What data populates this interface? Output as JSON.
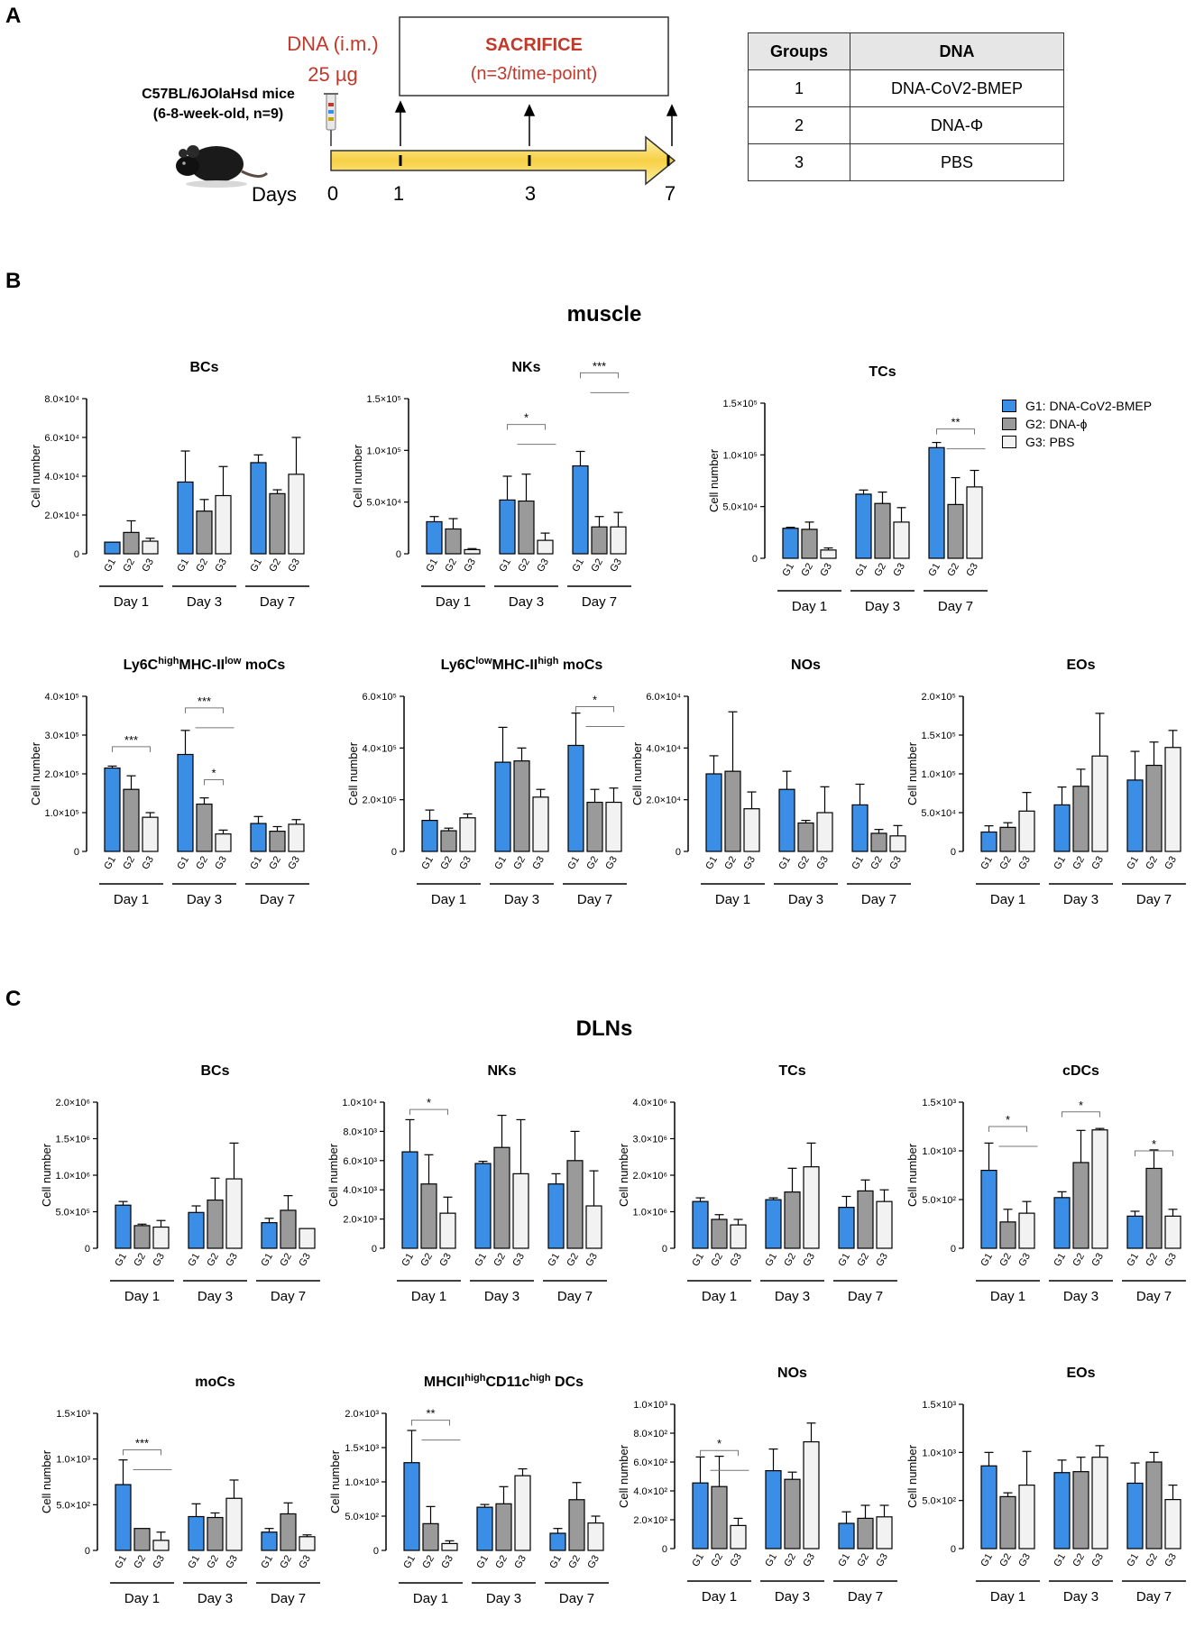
{
  "panels": {
    "a": "A",
    "b": "B",
    "c": "C"
  },
  "scheme": {
    "mouse_strain": "C57BL/6JOlaHsd mice",
    "mouse_info": "(6-8-week-old, n=9)",
    "dose_route": "DNA (i.m.)",
    "dose_amount": "25 µg",
    "sacrifice_title": "SACRIFICE",
    "sacrifice_detail": "(n=3/time-point)",
    "days_label": "Days",
    "days": [
      "0",
      "1",
      "3",
      "7"
    ]
  },
  "groups_table": {
    "headers": [
      "Groups",
      "DNA"
    ],
    "rows": [
      [
        "1",
        "DNA-CoV2-BMEP"
      ],
      [
        "2",
        "DNA-Φ"
      ],
      [
        "3",
        "PBS"
      ]
    ]
  },
  "section_titles": {
    "muscle": "muscle",
    "dlns": "DLNs"
  },
  "legend": [
    {
      "label": "G1: DNA-CoV2-BMEP",
      "color": "#3a8ee6"
    },
    {
      "label": "G2: DNA-ɸ",
      "color": "#9a9a9a"
    },
    {
      "label": "G3: PBS",
      "color": "#f2f2f2"
    }
  ],
  "colors": {
    "g1": "#3a8ee6",
    "g2": "#9a9a9a",
    "g3": "#f2f2f2"
  },
  "chart_data": [
    {
      "type": "bar",
      "section": "muscle",
      "title": "BCs",
      "ylabel": "Cell number",
      "ylim": [
        0,
        80000
      ],
      "yticks": [
        [
          0,
          "0"
        ],
        [
          20000,
          "2.0×10⁴"
        ],
        [
          40000,
          "4.0×10⁴"
        ],
        [
          60000,
          "6.0×10⁴"
        ],
        [
          80000,
          "8.0×10⁴"
        ]
      ],
      "groups": [
        "G1",
        "G2",
        "G3"
      ],
      "days": [
        "Day 1",
        "Day 3",
        "Day 7"
      ],
      "values": [
        [
          6000,
          11000,
          6500
        ],
        [
          37000,
          22000,
          30000
        ],
        [
          47000,
          31000,
          41000
        ]
      ],
      "errors": [
        [
          0,
          6000,
          1500
        ],
        [
          16000,
          6000,
          15000
        ],
        [
          4000,
          2000,
          19000
        ]
      ],
      "sig": []
    },
    {
      "type": "bar",
      "section": "muscle",
      "title": "NKs",
      "ylabel": "Cell number",
      "ylim": [
        0,
        150000
      ],
      "yticks": [
        [
          0,
          "0"
        ],
        [
          50000,
          "5.0×10⁴"
        ],
        [
          100000,
          "1.0×10⁵"
        ],
        [
          150000,
          "1.5×10⁵"
        ]
      ],
      "groups": [
        "G1",
        "G2",
        "G3"
      ],
      "days": [
        "Day 1",
        "Day 3",
        "Day 7"
      ],
      "values": [
        [
          31000,
          24000,
          4000
        ],
        [
          52000,
          51000,
          13000
        ],
        [
          85000,
          26000,
          26000
        ]
      ],
      "errors": [
        [
          5000,
          10000,
          1000
        ],
        [
          23000,
          26000,
          7000
        ],
        [
          14000,
          10000,
          14000
        ]
      ],
      "sig": [
        {
          "day": 1,
          "a": 0,
          "b": 2,
          "y": 125000,
          "label": "*",
          "combo": true
        },
        {
          "day": 2,
          "a": 0,
          "b": 2,
          "y": 175000,
          "label": "***",
          "combo": true
        }
      ]
    },
    {
      "type": "bar",
      "section": "muscle",
      "title": "TCs",
      "ylabel": "Cell number",
      "ylim": [
        0,
        150000
      ],
      "yticks": [
        [
          0,
          "0"
        ],
        [
          50000,
          "5.0×10⁴"
        ],
        [
          100000,
          "1.0×10⁵"
        ],
        [
          150000,
          "1.5×10⁵"
        ]
      ],
      "groups": [
        "G1",
        "G2",
        "G3"
      ],
      "days": [
        "Day 1",
        "Day 3",
        "Day 7"
      ],
      "values": [
        [
          29000,
          28000,
          8000
        ],
        [
          62000,
          53000,
          35000
        ],
        [
          107000,
          52000,
          69000
        ]
      ],
      "errors": [
        [
          1000,
          7000,
          2000
        ],
        [
          4000,
          11000,
          14000
        ],
        [
          5000,
          26000,
          16000
        ]
      ],
      "sig": [
        {
          "day": 2,
          "a": 0,
          "b": 2,
          "y": 125000,
          "label": "**",
          "combo": true
        }
      ]
    },
    {
      "type": "bar",
      "section": "muscle",
      "title": "Ly6C",
      "title_sup1": "high",
      "title_mid": "MHC-II",
      "title_sup2": "low",
      "title_end": " moCs",
      "ylabel": "Cell number",
      "ylim": [
        0,
        400000
      ],
      "yticks": [
        [
          0,
          "0"
        ],
        [
          100000,
          "1.0×10⁵"
        ],
        [
          200000,
          "2.0×10⁵"
        ],
        [
          300000,
          "3.0×10⁵"
        ],
        [
          400000,
          "4.0×10⁵"
        ]
      ],
      "groups": [
        "G1",
        "G2",
        "G3"
      ],
      "days": [
        "Day 1",
        "Day 3",
        "Day 7"
      ],
      "values": [
        [
          215000,
          160000,
          88000
        ],
        [
          250000,
          122000,
          45000
        ],
        [
          72000,
          52000,
          70000
        ]
      ],
      "errors": [
        [
          5000,
          35000,
          12000
        ],
        [
          62000,
          16000,
          10000
        ],
        [
          18000,
          12000,
          12000
        ]
      ],
      "sig": [
        {
          "day": 0,
          "a": 0,
          "b": 2,
          "y": 270000,
          "label": "***"
        },
        {
          "day": 1,
          "a": 0,
          "b": 2,
          "y": 370000,
          "label": "***",
          "combo": true
        },
        {
          "day": 1,
          "a": 1,
          "b": 2,
          "y": 185000,
          "label": "*"
        }
      ]
    },
    {
      "type": "bar",
      "section": "muscle",
      "title": "Ly6C",
      "title_sup1": "low",
      "title_mid": "MHC-II",
      "title_sup2": "high",
      "title_end": " moCs",
      "ylabel": "Cell number",
      "ylim": [
        0,
        600000
      ],
      "yticks": [
        [
          0,
          "0"
        ],
        [
          200000,
          "2.0×10⁵"
        ],
        [
          400000,
          "4.0×10⁵"
        ],
        [
          600000,
          "6.0×10⁵"
        ]
      ],
      "groups": [
        "G1",
        "G2",
        "G3"
      ],
      "days": [
        "Day 1",
        "Day 3",
        "Day 7"
      ],
      "values": [
        [
          120000,
          80000,
          130000
        ],
        [
          345000,
          350000,
          210000
        ],
        [
          410000,
          190000,
          190000
        ]
      ],
      "errors": [
        [
          40000,
          10000,
          15000
        ],
        [
          135000,
          50000,
          30000
        ],
        [
          125000,
          50000,
          55000
        ]
      ],
      "sig": [
        {
          "day": 2,
          "a": 0,
          "b": 2,
          "y": 560000,
          "label": "*",
          "combo": true
        }
      ]
    },
    {
      "type": "bar",
      "section": "muscle",
      "title": "NOs",
      "ylabel": "Cell number",
      "ylim": [
        0,
        60000
      ],
      "yticks": [
        [
          0,
          "0"
        ],
        [
          20000,
          "2.0×10⁴"
        ],
        [
          40000,
          "4.0×10⁴"
        ],
        [
          60000,
          "6.0×10⁴"
        ]
      ],
      "groups": [
        "G1",
        "G2",
        "G3"
      ],
      "days": [
        "Day 1",
        "Day 3",
        "Day 7"
      ],
      "values": [
        [
          30000,
          31000,
          16500
        ],
        [
          24000,
          11000,
          15000
        ],
        [
          18000,
          7000,
          6000
        ]
      ],
      "errors": [
        [
          7000,
          23000,
          6500
        ],
        [
          7000,
          1000,
          10000
        ],
        [
          8000,
          1500,
          4000
        ]
      ],
      "sig": []
    },
    {
      "type": "bar",
      "section": "muscle",
      "title": "EOs",
      "ylabel": "Cell number",
      "ylim": [
        0,
        200000
      ],
      "yticks": [
        [
          0,
          "0"
        ],
        [
          50000,
          "5.0×10⁴"
        ],
        [
          100000,
          "1.0×10⁵"
        ],
        [
          150000,
          "1.5×10⁵"
        ],
        [
          200000,
          "2.0×10⁵"
        ]
      ],
      "groups": [
        "G1",
        "G2",
        "G3"
      ],
      "days": [
        "Day 1",
        "Day 3",
        "Day 7"
      ],
      "values": [
        [
          25000,
          31000,
          52000
        ],
        [
          60000,
          84000,
          123000
        ],
        [
          92000,
          111000,
          134000
        ]
      ],
      "errors": [
        [
          8000,
          6000,
          24000
        ],
        [
          23000,
          22000,
          55000
        ],
        [
          37000,
          30000,
          22000
        ]
      ],
      "sig": []
    },
    {
      "type": "bar",
      "section": "DLNs",
      "title": "BCs",
      "ylabel": "Cell number",
      "ylim": [
        0,
        2000000
      ],
      "yticks": [
        [
          0,
          "0"
        ],
        [
          500000,
          "5.0×10⁵"
        ],
        [
          1000000,
          "1.0×10⁶"
        ],
        [
          1500000,
          "1.5×10⁶"
        ],
        [
          2000000,
          "2.0×10⁶"
        ]
      ],
      "groups": [
        "G1",
        "G2",
        "G3"
      ],
      "days": [
        "Day 1",
        "Day 3",
        "Day 7"
      ],
      "values": [
        [
          590000,
          310000,
          290000
        ],
        [
          490000,
          660000,
          950000
        ],
        [
          350000,
          520000,
          270000
        ]
      ],
      "errors": [
        [
          50000,
          20000,
          90000
        ],
        [
          90000,
          300000,
          490000
        ],
        [
          60000,
          200000,
          0
        ]
      ],
      "sig": []
    },
    {
      "type": "bar",
      "section": "DLNs",
      "title": "NKs",
      "ylabel": "Cell number",
      "ylim": [
        0,
        10000
      ],
      "yticks": [
        [
          0,
          "0"
        ],
        [
          2000,
          "2.0×10³"
        ],
        [
          4000,
          "4.0×10³"
        ],
        [
          6000,
          "6.0×10³"
        ],
        [
          8000,
          "8.0×10³"
        ],
        [
          10000,
          "1.0×10⁴"
        ]
      ],
      "groups": [
        "G1",
        "G2",
        "G3"
      ],
      "days": [
        "Day 1",
        "Day 3",
        "Day 7"
      ],
      "values": [
        [
          6600,
          4400,
          2400
        ],
        [
          5800,
          6900,
          5100
        ],
        [
          4400,
          6000,
          2900
        ]
      ],
      "errors": [
        [
          2200,
          2000,
          1100
        ],
        [
          150,
          2200,
          3700
        ],
        [
          700,
          2000,
          2400
        ]
      ],
      "sig": [
        {
          "day": 0,
          "a": 0,
          "b": 2,
          "y": 9500,
          "label": "*"
        }
      ]
    },
    {
      "type": "bar",
      "section": "DLNs",
      "title": "TCs",
      "ylabel": "Cell number",
      "ylim": [
        0,
        4000000
      ],
      "yticks": [
        [
          0,
          "0"
        ],
        [
          1000000,
          "1.0×10⁶"
        ],
        [
          2000000,
          "2.0×10⁶"
        ],
        [
          3000000,
          "3.0×10⁶"
        ],
        [
          4000000,
          "4.0×10⁶"
        ]
      ],
      "groups": [
        "G1",
        "G2",
        "G3"
      ],
      "days": [
        "Day 1",
        "Day 3",
        "Day 7"
      ],
      "values": [
        [
          1280000,
          790000,
          640000
        ],
        [
          1330000,
          1540000,
          2230000
        ],
        [
          1120000,
          1570000,
          1280000
        ]
      ],
      "errors": [
        [
          100000,
          130000,
          150000
        ],
        [
          50000,
          650000,
          650000
        ],
        [
          300000,
          300000,
          320000
        ]
      ],
      "sig": []
    },
    {
      "type": "bar",
      "section": "DLNs",
      "title": "cDCs",
      "ylabel": "Cell number",
      "ylim": [
        0,
        1500
      ],
      "yticks": [
        [
          0,
          "0"
        ],
        [
          500,
          "5.0×10²"
        ],
        [
          1000,
          "1.0×10³"
        ],
        [
          1500,
          "1.5×10³"
        ]
      ],
      "groups": [
        "G1",
        "G2",
        "G3"
      ],
      "days": [
        "Day 1",
        "Day 3",
        "Day 7"
      ],
      "values": [
        [
          800,
          270,
          360
        ],
        [
          520,
          880,
          1215
        ],
        [
          330,
          820,
          330
        ]
      ],
      "errors": [
        [
          280,
          130,
          120
        ],
        [
          60,
          330,
          15
        ],
        [
          50,
          190,
          70
        ]
      ],
      "sig": [
        {
          "day": 0,
          "a": 0,
          "b": 2,
          "y": 1250,
          "label": "*",
          "combo": true
        },
        {
          "day": 1,
          "a": 0,
          "b": 2,
          "y": 1400,
          "label": "*"
        },
        {
          "day": 2,
          "a": 0,
          "b": 2,
          "y": 1000,
          "label": "*"
        }
      ]
    },
    {
      "type": "bar",
      "section": "DLNs",
      "title": "moCs",
      "ylabel": "Cell number",
      "ylim": [
        0,
        1500
      ],
      "yticks": [
        [
          0,
          "0"
        ],
        [
          500,
          "5.0×10²"
        ],
        [
          1000,
          "1.0×10³"
        ],
        [
          1500,
          "1.5×10³"
        ]
      ],
      "groups": [
        "G1",
        "G2",
        "G3"
      ],
      "days": [
        "Day 1",
        "Day 3",
        "Day 7"
      ],
      "values": [
        [
          720,
          240,
          110
        ],
        [
          370,
          360,
          570
        ],
        [
          200,
          400,
          150
        ]
      ],
      "errors": [
        [
          270,
          0,
          90
        ],
        [
          140,
          50,
          200
        ],
        [
          40,
          120,
          20
        ]
      ],
      "sig": [
        {
          "day": 0,
          "a": 0,
          "b": 2,
          "y": 1100,
          "label": "***",
          "combo": true
        }
      ]
    },
    {
      "type": "bar",
      "section": "DLNs",
      "title": "MHCII",
      "title_sup1": "high",
      "title_mid": "CD11c",
      "title_sup2": "high",
      "title_end": " DCs",
      "ylabel": "Cell number",
      "ylim": [
        0,
        2000
      ],
      "yticks": [
        [
          0,
          "0"
        ],
        [
          500,
          "5.0×10²"
        ],
        [
          1000,
          "1.0×10³"
        ],
        [
          1500,
          "1.5×10³"
        ],
        [
          2000,
          "2.0×10³"
        ]
      ],
      "groups": [
        "G1",
        "G2",
        "G3"
      ],
      "days": [
        "Day 1",
        "Day 3",
        "Day 7"
      ],
      "values": [
        [
          1280,
          390,
          100
        ],
        [
          630,
          680,
          1090
        ],
        [
          250,
          740,
          400
        ]
      ],
      "errors": [
        [
          470,
          250,
          40
        ],
        [
          40,
          250,
          100
        ],
        [
          70,
          250,
          100
        ]
      ],
      "sig": [
        {
          "day": 0,
          "a": 0,
          "b": 2,
          "y": 1900,
          "label": "**",
          "combo": true
        }
      ]
    },
    {
      "type": "bar",
      "section": "DLNs",
      "title": "NOs",
      "ylabel": "Cell number",
      "ylim": [
        0,
        1000
      ],
      "yticks": [
        [
          0,
          "0"
        ],
        [
          200,
          "2.0×10²"
        ],
        [
          400,
          "4.0×10²"
        ],
        [
          600,
          "6.0×10²"
        ],
        [
          800,
          "8.0×10²"
        ],
        [
          1000,
          "1.0×10³"
        ]
      ],
      "groups": [
        "G1",
        "G2",
        "G3"
      ],
      "days": [
        "Day 1",
        "Day 3",
        "Day 7"
      ],
      "values": [
        [
          455,
          430,
          160
        ],
        [
          540,
          480,
          740
        ],
        [
          175,
          210,
          220
        ]
      ],
      "errors": [
        [
          180,
          210,
          50
        ],
        [
          150,
          50,
          130
        ],
        [
          80,
          90,
          80
        ]
      ],
      "sig": [
        {
          "day": 0,
          "a": 0,
          "b": 2,
          "y": 680,
          "label": "*",
          "combo": true
        }
      ]
    },
    {
      "type": "bar",
      "section": "DLNs",
      "title": "EOs",
      "ylabel": "Cell number",
      "ylim": [
        0,
        1500
      ],
      "yticks": [
        [
          0,
          "0"
        ],
        [
          500,
          "5.0×10²"
        ],
        [
          1000,
          "1.0×10³"
        ],
        [
          1500,
          "1.5×10³"
        ]
      ],
      "groups": [
        "G1",
        "G2",
        "G3"
      ],
      "days": [
        "Day 1",
        "Day 3",
        "Day 7"
      ],
      "values": [
        [
          860,
          540,
          660
        ],
        [
          790,
          800,
          950
        ],
        [
          680,
          900,
          510
        ]
      ],
      "errors": [
        [
          140,
          40,
          350
        ],
        [
          130,
          150,
          120
        ],
        [
          210,
          100,
          150
        ]
      ],
      "sig": []
    }
  ]
}
